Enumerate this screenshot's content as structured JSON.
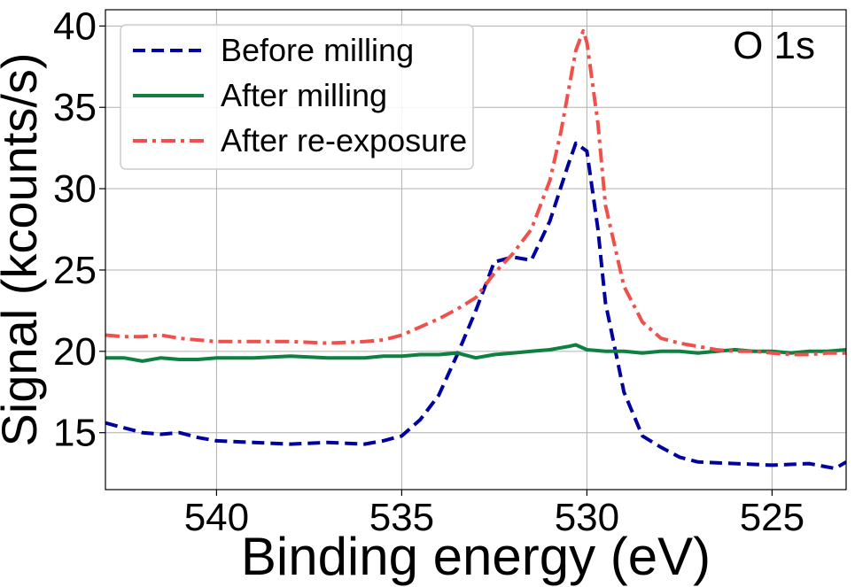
{
  "chart_data": {
    "type": "line",
    "title": "",
    "annotation": "O 1s",
    "xlabel": "Binding energy (eV)",
    "ylabel": "Signal (kcounts/s)",
    "xlim": [
      543,
      523
    ],
    "ylim": [
      11.5,
      41
    ],
    "x_reversed": true,
    "grid": true,
    "legend_position": "top-left",
    "x_ticks": [
      540,
      535,
      530,
      525
    ],
    "x_tick_labels": [
      "540",
      "535",
      "530",
      "525"
    ],
    "y_ticks": [
      15,
      20,
      25,
      30,
      35,
      40
    ],
    "y_tick_labels": [
      "15",
      "20",
      "25",
      "30",
      "35",
      "40"
    ],
    "series": [
      {
        "name": "Before milling",
        "color": "#0000a0",
        "style": "dashed",
        "x": [
          543,
          542.5,
          542,
          541.5,
          541,
          540.5,
          540,
          539,
          538,
          537,
          536,
          535.5,
          535,
          534.5,
          534,
          533.5,
          533,
          532.5,
          532,
          531.5,
          531,
          530.5,
          530.3,
          530,
          529.7,
          529.5,
          529,
          528.5,
          528,
          527.5,
          527,
          526,
          525,
          524,
          523.3,
          523
        ],
        "y": [
          15.6,
          15.3,
          15.0,
          14.9,
          15.0,
          14.7,
          14.5,
          14.4,
          14.3,
          14.4,
          14.3,
          14.5,
          14.8,
          15.8,
          17.3,
          19.8,
          22.5,
          25.5,
          25.8,
          25.6,
          28.0,
          31.5,
          32.8,
          32.3,
          27.5,
          23.0,
          17.5,
          14.8,
          14.1,
          13.5,
          13.2,
          13.1,
          13.0,
          13.1,
          12.8,
          13.2
        ]
      },
      {
        "name": "After milling",
        "color": "#0e8040",
        "style": "solid",
        "x": [
          543,
          542.5,
          542,
          541.5,
          541,
          540.5,
          540,
          539,
          538,
          537,
          536,
          535.5,
          535,
          534.5,
          534,
          533.5,
          533,
          532.5,
          532,
          531.5,
          531,
          530.5,
          530.3,
          530,
          529.5,
          529,
          528.5,
          528,
          527.5,
          527,
          526.5,
          526,
          525.5,
          525,
          524.5,
          524,
          523.5,
          523
        ],
        "y": [
          19.6,
          19.6,
          19.4,
          19.6,
          19.5,
          19.5,
          19.6,
          19.6,
          19.7,
          19.6,
          19.6,
          19.7,
          19.7,
          19.8,
          19.8,
          19.9,
          19.6,
          19.8,
          19.9,
          20.0,
          20.1,
          20.3,
          20.4,
          20.1,
          20.0,
          20.0,
          19.9,
          20.0,
          20.0,
          19.9,
          20.0,
          20.1,
          20.0,
          20.0,
          19.9,
          20.0,
          20.0,
          20.1
        ]
      },
      {
        "name": "After re-exposure",
        "color": "#f0504c",
        "style": "dashdot",
        "x": [
          543,
          542.5,
          542,
          541.5,
          541,
          540.5,
          540,
          539,
          538,
          537,
          536,
          535.5,
          535,
          534.5,
          534,
          533.5,
          533,
          532.5,
          532,
          531.5,
          531,
          530.7,
          530.5,
          530.3,
          530.1,
          530,
          529.7,
          529.5,
          529,
          528.5,
          528,
          527.5,
          527,
          526.5,
          526,
          525.5,
          525,
          524.5,
          524,
          523.5,
          523
        ],
        "y": [
          21.0,
          20.9,
          20.9,
          21.0,
          20.8,
          20.7,
          20.6,
          20.6,
          20.6,
          20.5,
          20.6,
          20.7,
          21.0,
          21.5,
          22.0,
          22.6,
          23.3,
          24.8,
          26.0,
          27.5,
          30.5,
          33.5,
          36.0,
          38.5,
          39.7,
          39.0,
          34.0,
          29.0,
          24.0,
          21.8,
          20.8,
          20.5,
          20.3,
          20.1,
          20.0,
          20.0,
          19.9,
          19.8,
          19.8,
          19.9,
          19.9
        ]
      }
    ]
  }
}
